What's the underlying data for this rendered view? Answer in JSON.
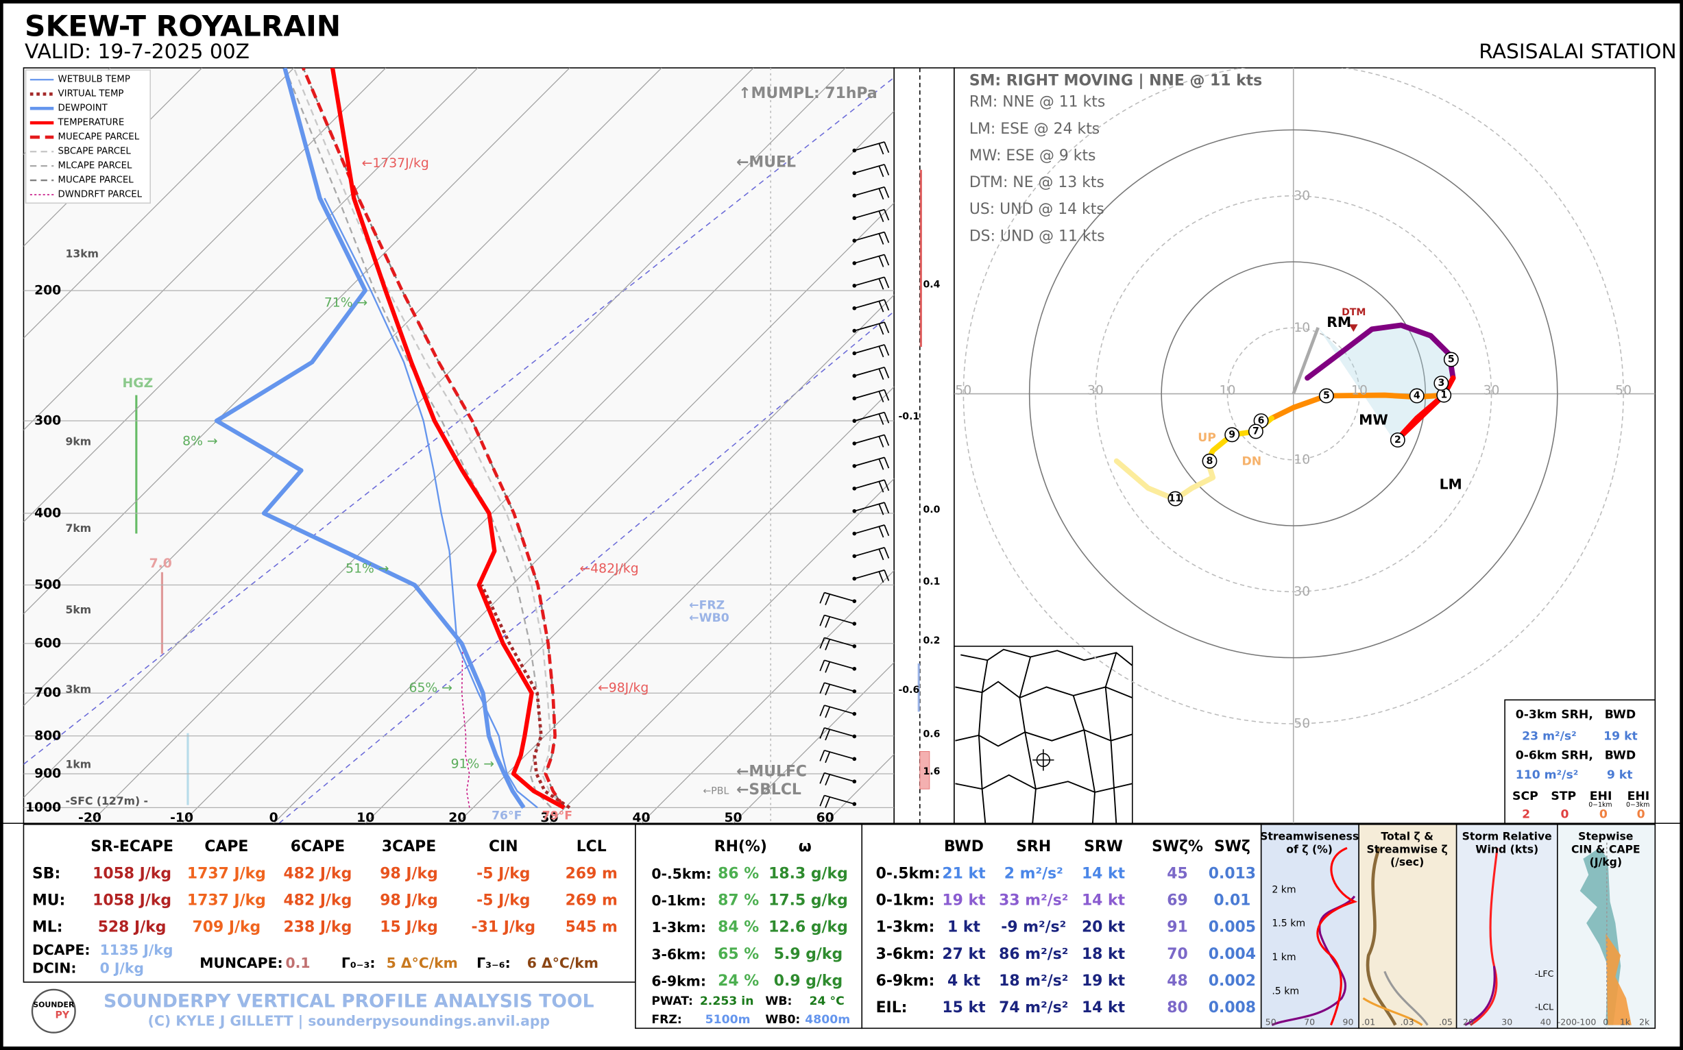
{
  "header": {
    "title": "SKEW-T ROYALRAIN",
    "valid": "VALID: 19-7-2025 00Z",
    "station": "RASISALAI STATION"
  },
  "chart_data": [
    {
      "type": "skewt",
      "legend": "upper left",
      "grid": true,
      "log_y": true,
      "y": [
        1000,
        950,
        900,
        850,
        800,
        700,
        600,
        500,
        450,
        400,
        350,
        300,
        250,
        200,
        150,
        100
      ],
      "ylim": [
        1050,
        100
      ],
      "yticks": [
        200,
        300,
        400,
        500,
        600,
        700,
        800,
        900,
        1000
      ],
      "xlim": [
        -27.2,
        67.5
      ],
      "xticks": [
        -20,
        -10,
        0,
        10,
        20,
        30,
        40,
        50,
        60
      ],
      "series": [
        {
          "name": "WETBULB TEMP",
          "color": "#6495ed",
          "values": [
            27,
            23,
            20,
            17.5,
            15,
            8.1,
            0.4,
            -6.5,
            -10.5,
            -15.5,
            -21,
            -27.5,
            -36,
            -47.4,
            -62.5,
            null
          ]
        },
        {
          "name": "VIRTUAL TEMP",
          "color": "#a52a2a",
          "values": [
            30.5,
            26,
            23.2,
            21,
            19.6,
            14.5,
            6.1,
            -3.3,
            null,
            null,
            null,
            null,
            null,
            null,
            null,
            null
          ]
        },
        {
          "name": "DEWPOINT",
          "color": "#6495ed",
          "values": [
            25.5,
            22.5,
            19.7,
            16.8,
            13.9,
            8.6,
            0.9,
            -10.6,
            -22,
            -34.8,
            -35.4,
            -50,
            -46,
            -48,
            -63,
            -81
          ]
        },
        {
          "name": "TEMPERATURE",
          "color": "#ff0000",
          "values": [
            29.9,
            24.8,
            20.7,
            19.5,
            17.8,
            13.9,
            5.4,
            -3.6,
            -5.6,
            -10.3,
            -17.9,
            -26.3,
            -35.2,
            -45.8,
            -59.3,
            -75.8
          ]
        },
        {
          "name": "MUECAPE PARCEL",
          "color": "#e41a1c",
          "values": [
            29.9,
            26.9,
            24.2,
            22.9,
            21.1,
            16.2,
            10.3,
            2.8,
            -2.1,
            -7.6,
            -14.4,
            -22.2,
            -32.2,
            -44,
            -58.8,
            -79
          ]
        },
        {
          "name": "SBCAPE PARCEL",
          "color": "#c8c8c8",
          "values": [
            29.9,
            26.5,
            23.8,
            22.5,
            20.6,
            15.6,
            9.7,
            2.1,
            -2.8,
            -8.4,
            -15.4,
            -23.4,
            -33.6,
            -45.5,
            -60,
            -80
          ]
        },
        {
          "name": "MLCAPE PARCEL",
          "color": "#a9a9a9",
          "values": [
            28.5,
            25,
            22.5,
            21,
            19.5,
            14.5,
            8.3,
            0.5,
            -4.5,
            -10.2,
            -17.5,
            -25.5,
            -35.5,
            -47,
            -61,
            -81
          ]
        },
        {
          "name": "MUCAPE PARCEL",
          "color": "#808080",
          "values": [
            29.9,
            26.9,
            24.2,
            22.9,
            21.1,
            16.2,
            10.3,
            2.8,
            -2.1,
            -7.6,
            -14.4,
            -22.2,
            -32.2,
            -44,
            -58.8,
            -79
          ]
        },
        {
          "name": "DWNDRFT PARCEL",
          "color": "#c71585",
          "values": [
            19.6,
            17.5,
            15.9,
            13.5,
            11.4,
            6.3,
            1,
            null,
            null,
            null,
            null,
            null,
            null,
            null,
            null,
            null
          ]
        }
      ],
      "annotations": [
        "←1737J/kg",
        "←482J/kg",
        "←98J/kg",
        "71% →",
        "8% →",
        "51% →",
        "65% →",
        "91% →",
        "HGZ",
        "7.0",
        "↑MUMPL: 71hPa",
        "←MUEL",
        "←FRZ",
        "←WB0",
        "←MULFC",
        "←SBLCL",
        "←PBL",
        "76°F",
        "79°F"
      ],
      "height_labels": [
        "13km",
        "9km",
        "7km",
        "5km",
        "3km",
        "1km",
        "-SFC (127m) -"
      ],
      "omega_labels": [
        "0.4",
        "-0.1",
        "0.0",
        "0.1",
        "0.2",
        "-0.6",
        "0.6",
        "1.6"
      ]
    },
    {
      "type": "hodograph",
      "xlim": [
        -51.4,
        54.8
      ],
      "ylim": [
        -65.1,
        49.4
      ],
      "xticks": [
        {
          "value": -50,
          "label": "50"
        },
        {
          "value": -30,
          "label": "30"
        },
        {
          "value": -10,
          "label": "10"
        },
        10,
        30,
        50
      ],
      "yticks": [
        {
          "value": -50,
          "label": "50"
        },
        {
          "value": -30,
          "label": "30"
        },
        {
          "value": -10,
          "label": "10"
        },
        10,
        30
      ],
      "series": [
        {
          "color": "#800080",
          "x": [
            2.1,
            7.3,
            11.9,
            16.3,
            20.8,
            23.6,
            24.2
          ],
          "values": [
            2.4,
            6.3,
            9.8,
            10.4,
            8.8,
            6.0,
            2.4
          ]
        },
        {
          "color": "#ff0000",
          "x": [
            24.2,
            22.8,
            18.7,
            15.4,
            21.1,
            22.8
          ],
          "values": [
            2.4,
            -0.2,
            -3.7,
            -7.3,
            -1.8,
            -0.2
          ]
        },
        {
          "color": "#ff8c00",
          "x": [
            22.8,
            18.7,
            13.8,
            5.0,
            0,
            -3.3
          ],
          "values": [
            -0.2,
            -0.5,
            -0.2,
            -0.3,
            -2.1,
            -3.7
          ]
        },
        {
          "color": "#ffd700",
          "x": [
            -3.3,
            -5.7,
            -9.3,
            -12.2,
            -13.0
          ],
          "values": [
            -3.7,
            -5.7,
            -6.2,
            -8.6,
            -10.2
          ]
        },
        {
          "color": "#fcec9c",
          "x": [
            -13.0,
            -12.2,
            -15.4,
            -17.9,
            -22.0,
            -26.8
          ],
          "values": [
            -10.2,
            -12.7,
            -14.3,
            -16.0,
            -14.3,
            -10.2
          ]
        }
      ],
      "markers": [
        {
          "label": "1",
          "u": 22.8,
          "v": -0.2
        },
        {
          "label": "2",
          "u": 15.8,
          "v": -7.0
        },
        {
          "label": "3",
          "u": 22.4,
          "v": 1.6
        },
        {
          "label": "4",
          "u": 18.7,
          "v": -0.3
        },
        {
          "label": "5",
          "u": 23.9,
          "v": 5.2
        },
        {
          "label": "5",
          "u": 5.0,
          "v": -0.3
        },
        {
          "label": "6",
          "u": -4.9,
          "v": -4.1
        },
        {
          "label": "7",
          "u": -5.7,
          "v": -5.7
        },
        {
          "label": "8",
          "u": -12.7,
          "v": -10.2
        },
        {
          "label": "9",
          "u": -9.3,
          "v": -6.2
        },
        {
          "label": "11",
          "u": -17.9,
          "v": -15.9
        }
      ],
      "point_labels": [
        "RM",
        "DTM",
        "MW",
        "LM",
        "UP",
        "DN"
      ],
      "info": [
        "SM: RIGHT MOVING | NNE @ 11 kts",
        "RM: NNE @ 11 kts",
        "LM: ESE @ 24 kts",
        "MW: ESE @ 9 kts",
        "DTM: NE @ 13 kts",
        "US: UND @ 14 kts",
        "DS: UND @ 11 kts"
      ]
    }
  ],
  "inset": {
    "srh03": "0-3km SRH,",
    "bwd_a": "BWD",
    "srh03_val": "23 m²/s²",
    "bwd03_val": "19 kt",
    "srh06": "0-6km SRH,",
    "bwd_b": "BWD",
    "srh06_val": "110 m²/s²",
    "bwd06_val": "9 kt",
    "scp": "SCP",
    "stp": "STP",
    "ehi1": "EHI",
    "ehi3": "EHI",
    "ehi1_sub": "0−1km",
    "ehi3_sub": "0−3km",
    "scp_val": "2",
    "stp_val": "0",
    "ehi1_val": "0",
    "ehi3_val": "0"
  },
  "tables": {
    "thermo": {
      "headers": [
        "SR-ECAPE",
        "CAPE",
        "6CAPE",
        "3CAPE",
        "CIN",
        "LCL"
      ],
      "rows": [
        {
          "label": "SB:",
          "cells": [
            "1058 J/kg",
            "1737 J/kg",
            "482 J/kg",
            "98 J/kg",
            "-5 J/kg",
            "269 m"
          ]
        },
        {
          "label": "MU:",
          "cells": [
            "1058 J/kg",
            "1737 J/kg",
            "482 J/kg",
            "98 J/kg",
            "-5 J/kg",
            "269 m"
          ]
        },
        {
          "label": "ML:",
          "cells": [
            "528 J/kg",
            "709 J/kg",
            "238 J/kg",
            "15 J/kg",
            "-31 J/kg",
            "545 m"
          ]
        }
      ]
    },
    "thermo_extra": {
      "dcape_label": "DCAPE:",
      "dcape": "1135 J/kg",
      "dcin_label": "DCIN:",
      "dcin": "0 J/kg",
      "muncape_label": "MUNCAPE:",
      "muncape": "0.1",
      "lapse03_label": "Γ₀₋₃:",
      "lapse03": "5 Δ°C/km",
      "lapse36_label": "Γ₃₋₆:",
      "lapse36": "6 Δ°C/km"
    },
    "moisture": {
      "headers": [
        "RH(%)",
        "ω"
      ],
      "rows": [
        {
          "label": "0-.5km:",
          "cells": [
            "86 %",
            "18.3 g/kg"
          ]
        },
        {
          "label": "0-1km:",
          "cells": [
            "87 %",
            "17.5 g/kg"
          ]
        },
        {
          "label": "1-3km:",
          "cells": [
            "84 %",
            "12.6 g/kg"
          ]
        },
        {
          "label": "3-6km:",
          "cells": [
            "65 %",
            "5.9 g/kg"
          ]
        },
        {
          "label": "6-9km:",
          "cells": [
            "24 %",
            "0.9 g/kg"
          ]
        }
      ],
      "pwat_label": "PWAT:",
      "pwat": "2.253 in",
      "wb_label": "WB:",
      "wb": "24 °C",
      "frz_label": "FRZ:",
      "frz": "5100m",
      "wb0_label": "WB0:",
      "wb0": "4800m"
    },
    "kinematic": {
      "headers": [
        "BWD",
        "SRH",
        "SRW",
        "SWζ%",
        "SWζ"
      ],
      "rows": [
        {
          "label": "0-.5km:",
          "cells": [
            "21 kt",
            "2 m²/s²",
            "14 kt",
            "45",
            "0.013"
          ]
        },
        {
          "label": "0-1km:",
          "cells": [
            "19 kt",
            "33 m²/s²",
            "14 kt",
            "69",
            "0.01"
          ]
        },
        {
          "label": "1-3km:",
          "cells": [
            "1 kt",
            "-9 m²/s²",
            "20 kt",
            "91",
            "0.005"
          ]
        },
        {
          "label": "3-6km:",
          "cells": [
            "27 kt",
            "86 m²/s²",
            "18 kt",
            "70",
            "0.004"
          ]
        },
        {
          "label": "6-9km:",
          "cells": [
            "4 kt",
            "18 m²/s²",
            "19 kt",
            "48",
            "0.002"
          ]
        },
        {
          "label": "EIL:",
          "cells": [
            "15 kt",
            "74 m²/s²",
            "14 kt",
            "80",
            "0.008"
          ]
        }
      ]
    }
  },
  "panels": [
    {
      "title": [
        "Streamwiseness",
        "of ζ (%)"
      ],
      "y_labels": [
        "2 km",
        "1.5 km",
        "1 km",
        ".5 km"
      ],
      "x_labels": [
        "50",
        "70",
        "90"
      ]
    },
    {
      "title": [
        "Total ζ &",
        "Streamwise ζ",
        "(/sec)"
      ],
      "x_labels": [
        ".01",
        ".03",
        ".05"
      ]
    },
    {
      "title": [
        "Storm Relative",
        "Wind (kts)"
      ],
      "x_labels": [
        "20",
        "30",
        "40"
      ]
    },
    {
      "title": [
        "Stepwise",
        "CIN & CAPE",
        "(J/kg)"
      ],
      "x_labels": [
        "-200",
        "-100",
        "0",
        "1k",
        "2k"
      ],
      "levels": [
        "-LFC",
        "-LCL"
      ]
    }
  ],
  "footer": {
    "logo_top": "SOUNDER",
    "logo_bottom": "PY",
    "tool": "SOUNDERPY VERTICAL PROFILE ANALYSIS TOOL",
    "credit": "(C) KYLE J GILLETT | sounderpysoundings.anvil.app"
  }
}
